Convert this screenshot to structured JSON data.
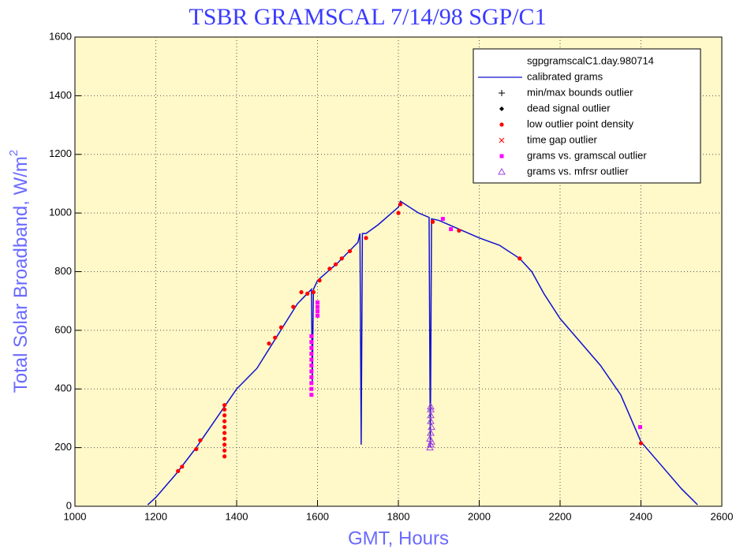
{
  "chart_data": {
    "type": "scatter",
    "title": "TSBR GRAMSCAL 7/14/98 SGP/C1",
    "xlabel": "GMT, Hours",
    "ylabel": "Total Solar Broadband, W/m",
    "ylabel_superscript": "2",
    "xlim": [
      1000,
      2600
    ],
    "ylim": [
      0,
      1600
    ],
    "xticks": [
      1000,
      1200,
      1400,
      1600,
      1800,
      2000,
      2200,
      2400,
      2600
    ],
    "yticks": [
      0,
      200,
      400,
      600,
      800,
      1000,
      1200,
      1400,
      1600
    ],
    "grid": true,
    "legend_title": "sgpgramscalC1.day.980714",
    "legend_position": "upper right",
    "series": [
      {
        "name": "calibrated grams",
        "marker": "line",
        "color": "#1010d0",
        "x": [
          1180,
          1200,
          1250,
          1300,
          1350,
          1400,
          1450,
          1500,
          1550,
          1585,
          1587,
          1590,
          1600,
          1650,
          1700,
          1705,
          1708,
          1711,
          1720,
          1750,
          1800,
          1805,
          1850,
          1876,
          1879,
          1882,
          1900,
          1950,
          2000,
          2050,
          2100,
          2130,
          2160,
          2200,
          2250,
          2300,
          2350,
          2400,
          2450,
          2500,
          2540
        ],
        "values": [
          5,
          30,
          110,
          200,
          300,
          400,
          470,
          580,
          690,
          740,
          420,
          740,
          770,
          830,
          900,
          930,
          210,
          930,
          930,
          960,
          1020,
          1040,
          1000,
          985,
          200,
          980,
          975,
          945,
          915,
          890,
          845,
          800,
          725,
          640,
          560,
          480,
          380,
          220,
          140,
          60,
          5
        ]
      },
      {
        "name": "min/max bounds outlier",
        "marker": "plus",
        "color": "#000000",
        "x": [],
        "values": []
      },
      {
        "name": "dead signal outlier",
        "marker": "diamond",
        "color": "#000000",
        "x": [],
        "values": []
      },
      {
        "name": "low outlier point density",
        "marker": "dot",
        "color": "#ff0000",
        "x": [
          1255,
          1265,
          1300,
          1310,
          1370,
          1370,
          1370,
          1370,
          1370,
          1370,
          1370,
          1370,
          1370,
          1370,
          1480,
          1495,
          1510,
          1540,
          1560,
          1575,
          1590,
          1605,
          1630,
          1645,
          1660,
          1680,
          1720,
          1800,
          1805,
          1885,
          1950,
          2100,
          2400
        ],
        "values": [
          120,
          135,
          195,
          225,
          170,
          190,
          210,
          230,
          250,
          270,
          290,
          310,
          330,
          345,
          555,
          575,
          610,
          680,
          730,
          725,
          730,
          770,
          810,
          825,
          845,
          870,
          915,
          1000,
          1030,
          970,
          940,
          845,
          215
        ]
      },
      {
        "name": "time gap outlier",
        "marker": "x",
        "color": "#ff0000",
        "x": [],
        "values": []
      },
      {
        "name": "grams vs. gramscal outlier",
        "marker": "square",
        "color": "#ff00ff",
        "x": [
          1585,
          1585,
          1585,
          1585,
          1585,
          1585,
          1585,
          1585,
          1585,
          1585,
          1585,
          1600,
          1600,
          1600,
          1600,
          1910,
          1930,
          2398
        ],
        "values": [
          380,
          400,
          420,
          440,
          460,
          480,
          500,
          520,
          540,
          560,
          580,
          650,
          665,
          680,
          695,
          980,
          945,
          270
        ]
      },
      {
        "name": "grams vs. mfrsr outlier",
        "marker": "triangle",
        "color": "#a040e0",
        "x": [
          1878,
          1880,
          1882,
          1878,
          1880,
          1882,
          1880,
          1880,
          1880,
          1880
        ],
        "values": [
          200,
          210,
          220,
          230,
          250,
          270,
          290,
          310,
          330,
          340
        ]
      }
    ]
  }
}
